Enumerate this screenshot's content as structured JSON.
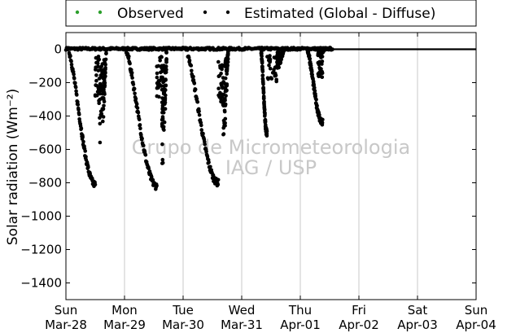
{
  "chart_data": {
    "type": "scatter",
    "ylabel": "Solar radiation (Wm⁻²)",
    "ylim": [
      -1500,
      100
    ],
    "yticks": [
      0,
      -200,
      -400,
      -600,
      -800,
      -1000,
      -1200,
      -1400
    ],
    "xlim_days": [
      0,
      7
    ],
    "xticks": [
      {
        "day": "Sun",
        "date": "Mar-28"
      },
      {
        "day": "Mon",
        "date": "Mar-29"
      },
      {
        "day": "Tue",
        "date": "Mar-30"
      },
      {
        "day": "Wed",
        "date": "Mar-31"
      },
      {
        "day": "Thu",
        "date": "Apr-01"
      },
      {
        "day": "Fri",
        "date": "Apr-02"
      },
      {
        "day": "Sat",
        "date": "Apr-03"
      },
      {
        "day": "Sun",
        "date": "Apr-04"
      }
    ],
    "grid": "vertical",
    "legend_position": "top",
    "watermark": [
      "Grupo de Micrometeorologia",
      "IAG / USP"
    ],
    "series": [
      {
        "name": "Observed",
        "color": "#2ca02c",
        "points": []
      },
      {
        "name": "Estimated (Global - Diffuse)",
        "color": "#000000",
        "day_profiles": [
          {
            "start": 0.04,
            "end": 0.69,
            "noon": 0.5,
            "min": -810,
            "late_start": 0.57,
            "late_min": -650
          },
          {
            "start": 1.02,
            "end": 1.72,
            "noon": 1.55,
            "min": -820,
            "late_start": 1.64,
            "late_min": -720
          },
          {
            "start": 2.05,
            "end": 2.77,
            "noon": 2.6,
            "min": -800,
            "late_start": 2.68,
            "late_min": -560
          },
          {
            "start": 3.33,
            "end": 3.72,
            "noon": 3.43,
            "min": -500,
            "late_start": 3.6,
            "late_min": -120
          },
          {
            "start": 4.12,
            "end": 4.42,
            "noon": 4.38,
            "min": -440,
            "late_start": 4.3,
            "late_min": -40
          }
        ]
      }
    ]
  }
}
